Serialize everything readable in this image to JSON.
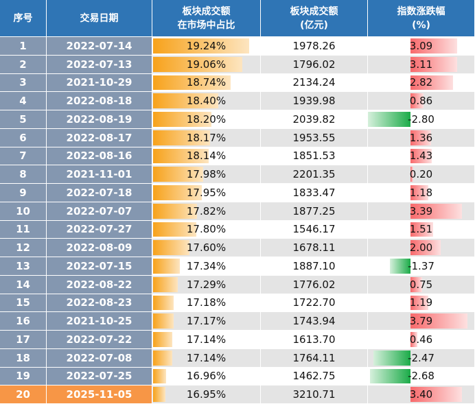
{
  "header": {
    "columns": [
      [
        "序号"
      ],
      [
        "交易日期"
      ],
      [
        "板块成交额",
        "在市场中占比"
      ],
      [
        "板块成交额",
        "(亿元)"
      ],
      [
        "指数涨跌幅",
        "(%)"
      ]
    ]
  },
  "table": {
    "rows": [
      [
        1,
        "2022-07-14",
        {
          "value": 19.24,
          "label": "19.24%"
        },
        1978.26,
        3.09
      ],
      [
        2,
        "2022-07-13",
        {
          "value": 19.06,
          "label": "19.06%"
        },
        1796.02,
        3.11
      ],
      [
        3,
        "2021-10-29",
        {
          "value": 18.74,
          "label": "18.74%"
        },
        2134.24,
        2.82
      ],
      [
        4,
        "2022-08-18",
        {
          "value": 18.4,
          "label": "18.40%"
        },
        1939.98,
        0.86
      ],
      [
        5,
        "2022-08-19",
        {
          "value": 18.2,
          "label": "18.20%"
        },
        2039.82,
        {
          "value": -2.8,
          "label": "-2.80"
        }
      ],
      [
        6,
        "2022-08-17",
        {
          "value": 18.17,
          "label": "18.17%"
        },
        1953.55,
        1.36
      ],
      [
        7,
        "2022-08-16",
        {
          "value": 18.14,
          "label": "18.14%"
        },
        1851.53,
        1.43
      ],
      [
        8,
        "2021-11-01",
        {
          "value": 17.98,
          "label": "17.98%"
        },
        2201.35,
        {
          "value": 0.2,
          "label": "0.20"
        }
      ],
      [
        9,
        "2022-07-18",
        {
          "value": 17.95,
          "label": "17.95%"
        },
        1833.47,
        1.18
      ],
      [
        10,
        "2022-07-07",
        {
          "value": 17.82,
          "label": "17.82%"
        },
        1877.25,
        3.39
      ],
      [
        11,
        "2022-07-27",
        {
          "value": 17.8,
          "label": "17.80%"
        },
        1546.17,
        1.51
      ],
      [
        12,
        "2022-08-09",
        {
          "value": 17.6,
          "label": "17.60%"
        },
        1678.11,
        {
          "value": 2.0,
          "label": "2.00"
        }
      ],
      [
        13,
        "2022-07-15",
        {
          "value": 17.34,
          "label": "17.34%"
        },
        {
          "value": 1887.1,
          "label": "1887.10"
        },
        -1.37
      ],
      [
        14,
        "2022-08-22",
        {
          "value": 17.29,
          "label": "17.29%"
        },
        1776.02,
        0.75
      ],
      [
        15,
        "2022-08-23",
        {
          "value": 17.18,
          "label": "17.18%"
        },
        {
          "value": 1722.7,
          "label": "1722.70"
        },
        1.19
      ],
      [
        16,
        "2021-10-25",
        {
          "value": 17.17,
          "label": "17.17%"
        },
        1743.94,
        3.79
      ],
      [
        17,
        "2022-07-22",
        {
          "value": 17.14,
          "label": "17.14%"
        },
        {
          "value": 1613.7,
          "label": "1613.70"
        },
        0.46
      ],
      [
        18,
        "2022-07-08",
        {
          "value": 17.14,
          "label": "17.14%"
        },
        1764.11,
        -2.47
      ],
      [
        19,
        "2022-07-25",
        {
          "value": 16.96,
          "label": "16.96%"
        },
        1462.75,
        -2.68
      ],
      [
        20,
        "2025-11-05",
        {
          "value": 16.95,
          "label": "16.95%"
        },
        3210.71,
        {
          "value": 3.4,
          "label": "3.40"
        }
      ]
    ]
  }
}
